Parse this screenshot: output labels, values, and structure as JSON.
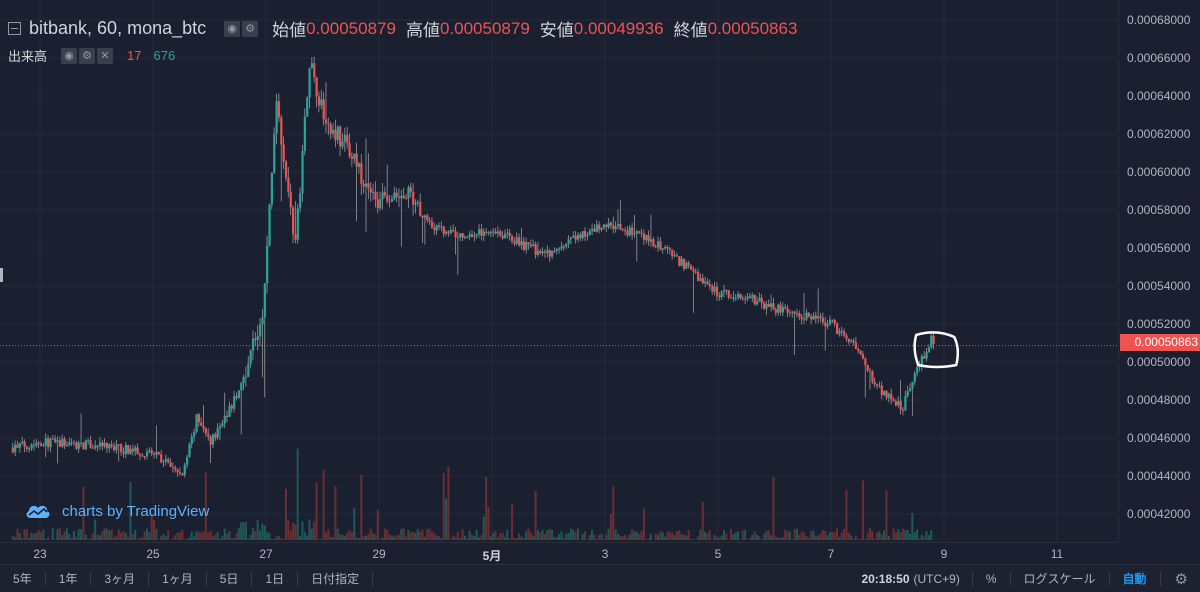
{
  "legend": {
    "symbol": "bitbank, 60, mona_btc",
    "open_label": "始値",
    "open_value": "0.00050879",
    "high_label": "高値",
    "high_value": "0.00050879",
    "low_label": "安値",
    "low_value": "0.00049936",
    "close_label": "終値",
    "close_value": "0.00050863",
    "volume_label": "出来高",
    "volume_red": "17",
    "volume_green": "676"
  },
  "watermark": "charts by TradingView",
  "last_price": "0.00050863",
  "toolbar": {
    "ranges": [
      "5年",
      "1年",
      "3ヶ月",
      "1ヶ月",
      "5日",
      "1日",
      "日付指定"
    ],
    "time": "20:18:50",
    "timezone": "(UTC+9)",
    "percent": "%",
    "log_scale": "ログスケール",
    "auto": "自動",
    "settings_icon": "gear-icon"
  },
  "colors": {
    "up": "#26a69a",
    "down": "#ef5350",
    "background": "#1b2030",
    "last_price_line": "#ef5350",
    "annotation": "#ffffff"
  },
  "chart_data": {
    "type": "candlestick",
    "title": "bitbank, 60, mona_btc",
    "y_range": [
      0.0004,
      0.00068
    ],
    "price_ticks": [
      "0.00068000",
      "0.00066000",
      "0.00064000",
      "0.00062000",
      "0.00060000",
      "0.00058000",
      "0.00056000",
      "0.00054000",
      "0.00052000",
      "0.00050000",
      "0.00048000",
      "0.00046000",
      "0.00044000",
      "0.00042000"
    ],
    "time_ticks": [
      {
        "label": "23",
        "x": "04-23"
      },
      {
        "label": "25",
        "x": "04-25"
      },
      {
        "label": "27",
        "x": "04-27"
      },
      {
        "label": "29",
        "x": "04-29"
      },
      {
        "label": "5月",
        "x": "05-01",
        "bold": true
      },
      {
        "label": "3",
        "x": "05-03"
      },
      {
        "label": "5",
        "x": "05-05"
      },
      {
        "label": "7",
        "x": "05-07"
      },
      {
        "label": "9",
        "x": "05-09"
      },
      {
        "label": "11",
        "x": "05-11"
      }
    ],
    "x_range_days": [
      "04-22 12:00",
      "05-12 00:00"
    ],
    "anchor_points": [
      {
        "x": "04-22 12:00",
        "y": 0.000455
      },
      {
        "x": "04-23 00:00",
        "y": 0.000458
      },
      {
        "x": "04-24 00:00",
        "y": 0.000456
      },
      {
        "x": "04-25 00:00",
        "y": 0.000452
      },
      {
        "x": "04-25 12:00",
        "y": 0.00044
      },
      {
        "x": "04-25 18:00",
        "y": 0.00047
      },
      {
        "x": "04-26 00:00",
        "y": 0.000458
      },
      {
        "x": "04-26 12:00",
        "y": 0.000484
      },
      {
        "x": "04-26 18:00",
        "y": 0.00051
      },
      {
        "x": "04-26 22:00",
        "y": 0.00052
      },
      {
        "x": "04-27 04:00",
        "y": 0.00064
      },
      {
        "x": "04-27 12:00",
        "y": 0.00056
      },
      {
        "x": "04-27 18:00",
        "y": 0.00066
      },
      {
        "x": "04-28 00:00",
        "y": 0.00063
      },
      {
        "x": "04-28 12:00",
        "y": 0.00061
      },
      {
        "x": "04-28 18:00",
        "y": 0.00059
      },
      {
        "x": "04-29 00:00",
        "y": 0.000585
      },
      {
        "x": "04-29 12:00",
        "y": 0.000587
      },
      {
        "x": "04-30 00:00",
        "y": 0.00057
      },
      {
        "x": "04-30 12:00",
        "y": 0.000566
      },
      {
        "x": "05-01 00:00",
        "y": 0.00057
      },
      {
        "x": "05-01 12:00",
        "y": 0.000562
      },
      {
        "x": "05-02 00:00",
        "y": 0.000556
      },
      {
        "x": "05-02 12:00",
        "y": 0.000566
      },
      {
        "x": "05-03 00:00",
        "y": 0.000572
      },
      {
        "x": "05-03 12:00",
        "y": 0.000568
      },
      {
        "x": "05-04 00:00",
        "y": 0.00056
      },
      {
        "x": "05-04 12:00",
        "y": 0.000548
      },
      {
        "x": "05-05 00:00",
        "y": 0.000536
      },
      {
        "x": "05-05 12:00",
        "y": 0.000534
      },
      {
        "x": "05-06 00:00",
        "y": 0.000528
      },
      {
        "x": "05-06 12:00",
        "y": 0.000524
      },
      {
        "x": "05-07 00:00",
        "y": 0.00052
      },
      {
        "x": "05-07 12:00",
        "y": 0.000505
      },
      {
        "x": "05-07 18:00",
        "y": 0.000488
      },
      {
        "x": "05-08 00:00",
        "y": 0.000482
      },
      {
        "x": "05-08 06:00",
        "y": 0.000476
      },
      {
        "x": "05-08 12:00",
        "y": 0.000496
      },
      {
        "x": "05-08 18:00",
        "y": 0.000512
      },
      {
        "x": "05-08 20:00",
        "y": 0.00050863
      }
    ],
    "highlight_circle": {
      "x": "05-08 19:00",
      "y": 0.00051
    },
    "series": [
      {
        "name": "出来高",
        "type": "volume"
      }
    ]
  }
}
